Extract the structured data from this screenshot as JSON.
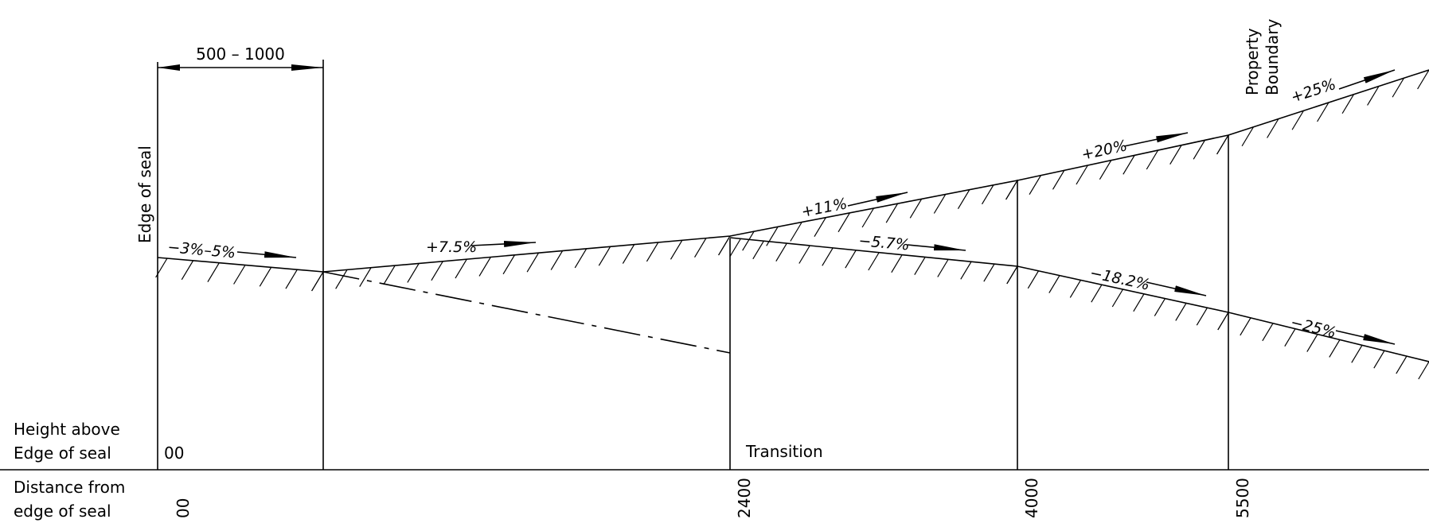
{
  "drawing": {
    "dimension_label": "500 – 1000",
    "edge_of_seal_label": "Edge of seal",
    "property_boundary_line1": "Property",
    "property_boundary_line2": "Boundary",
    "transition_label": "Transition",
    "height_label_line1": "Height above",
    "height_label_line2": "Edge of seal",
    "height_value": "00",
    "distance_label_line1": "Distance from",
    "distance_label_line2": "edge of seal",
    "distances": [
      "00",
      "2400",
      "4000",
      "5500"
    ],
    "grades": {
      "g1": "−3%–5%",
      "g2": "+7.5%",
      "g3": "+11%",
      "g4": "+20%",
      "g5": "+25%",
      "g6": "−5.7%",
      "g7": "−18.2%",
      "g8": "−25%"
    }
  }
}
